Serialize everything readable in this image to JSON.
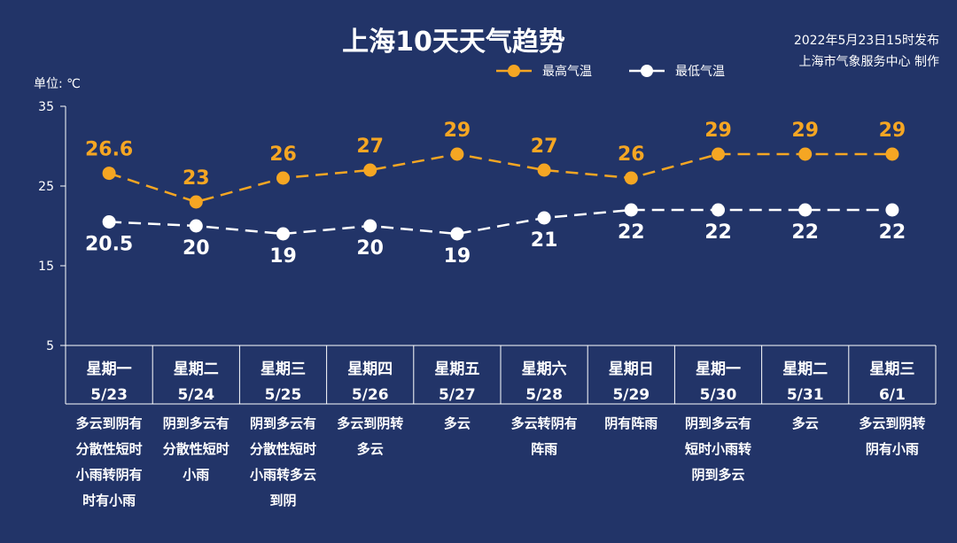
{
  "header": {
    "title": "上海10天天气趋势",
    "publish_line1": "2022年5月23日15时发布",
    "publish_line2": "上海市气象服务中心 制作",
    "unit_label": "单位: ℃"
  },
  "colors": {
    "background": "#223468",
    "high": "#f5a623",
    "low": "#ffffff"
  },
  "chart_data": {
    "type": "line",
    "title": "上海10天天气趋势",
    "ylabel": "单位: ℃",
    "ylim": [
      5,
      35
    ],
    "yticks": [
      5,
      15,
      25,
      35
    ],
    "grid": false,
    "legend_position": "top",
    "categories": [
      {
        "weekday": "星期一",
        "date": "5/23",
        "weather": [
          "多云到阴有",
          "分散性短时",
          "小雨转阴有",
          "时有小雨"
        ]
      },
      {
        "weekday": "星期二",
        "date": "5/24",
        "weather": [
          "阴到多云有",
          "分散性短时",
          "小雨"
        ]
      },
      {
        "weekday": "星期三",
        "date": "5/25",
        "weather": [
          "阴到多云有",
          "分散性短时",
          "小雨转多云",
          "到阴"
        ]
      },
      {
        "weekday": "星期四",
        "date": "5/26",
        "weather": [
          "多云到阴转",
          "多云"
        ]
      },
      {
        "weekday": "星期五",
        "date": "5/27",
        "weather": [
          "多云"
        ]
      },
      {
        "weekday": "星期六",
        "date": "5/28",
        "weather": [
          "多云转阴有",
          "阵雨"
        ]
      },
      {
        "weekday": "星期日",
        "date": "5/29",
        "weather": [
          "阴有阵雨"
        ]
      },
      {
        "weekday": "星期一",
        "date": "5/30",
        "weather": [
          "阴到多云有",
          "短时小雨转",
          "阴到多云"
        ]
      },
      {
        "weekday": "星期二",
        "date": "5/31",
        "weather": [
          "多云"
        ]
      },
      {
        "weekday": "星期三",
        "date": "6/1",
        "weather": [
          "多云到阴转",
          "阴有小雨"
        ]
      }
    ],
    "series": [
      {
        "name": "最高气温",
        "values": [
          26.6,
          23,
          26,
          27,
          29,
          27,
          26,
          29,
          29,
          29
        ],
        "labels": [
          "26.6",
          "23",
          "26",
          "27",
          "29",
          "27",
          "26",
          "29",
          "29",
          "29"
        ]
      },
      {
        "name": "最低气温",
        "values": [
          20.5,
          20,
          19,
          20,
          19,
          21,
          22,
          22,
          22,
          22
        ],
        "labels": [
          "20.5",
          "20",
          "19",
          "20",
          "19",
          "21",
          "22",
          "22",
          "22",
          "22"
        ]
      }
    ]
  }
}
